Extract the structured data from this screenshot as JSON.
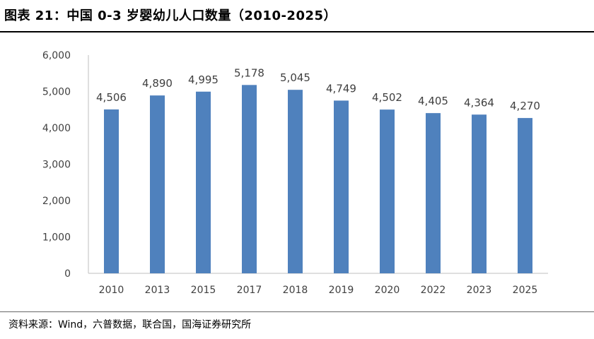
{
  "header": {
    "title": "图表 21：中国 0-3 岁婴幼儿人口数量（2010-2025）"
  },
  "footer": {
    "source": "资料来源：Wind，六普数据，联合国，国海证券研究所"
  },
  "chart_data": {
    "type": "bar",
    "title": "图表 21：中国 0-3 岁婴幼儿人口数量（2010-2025）",
    "categories": [
      "2010",
      "2013",
      "2015",
      "2017",
      "2018",
      "2019",
      "2020",
      "2022",
      "2023",
      "2025"
    ],
    "values": [
      4506,
      4890,
      4995,
      5178,
      5045,
      4749,
      4502,
      4405,
      4364,
      4270
    ],
    "value_labels": [
      "4,506",
      "4,890",
      "4,995",
      "5,178",
      "5,045",
      "4,749",
      "4,502",
      "4,405",
      "4,364",
      "4,270"
    ],
    "ylim": [
      0,
      6000
    ],
    "yticks": [
      0,
      1000,
      2000,
      3000,
      4000,
      5000,
      6000
    ],
    "ytick_labels": [
      "0",
      "1,000",
      "2,000",
      "3,000",
      "4,000",
      "5,000",
      "6,000"
    ],
    "xlabel": "",
    "ylabel": "",
    "grid": false,
    "legend": "none",
    "bar_color": "#4F81BD",
    "axis_color": "#BFBFBF"
  }
}
